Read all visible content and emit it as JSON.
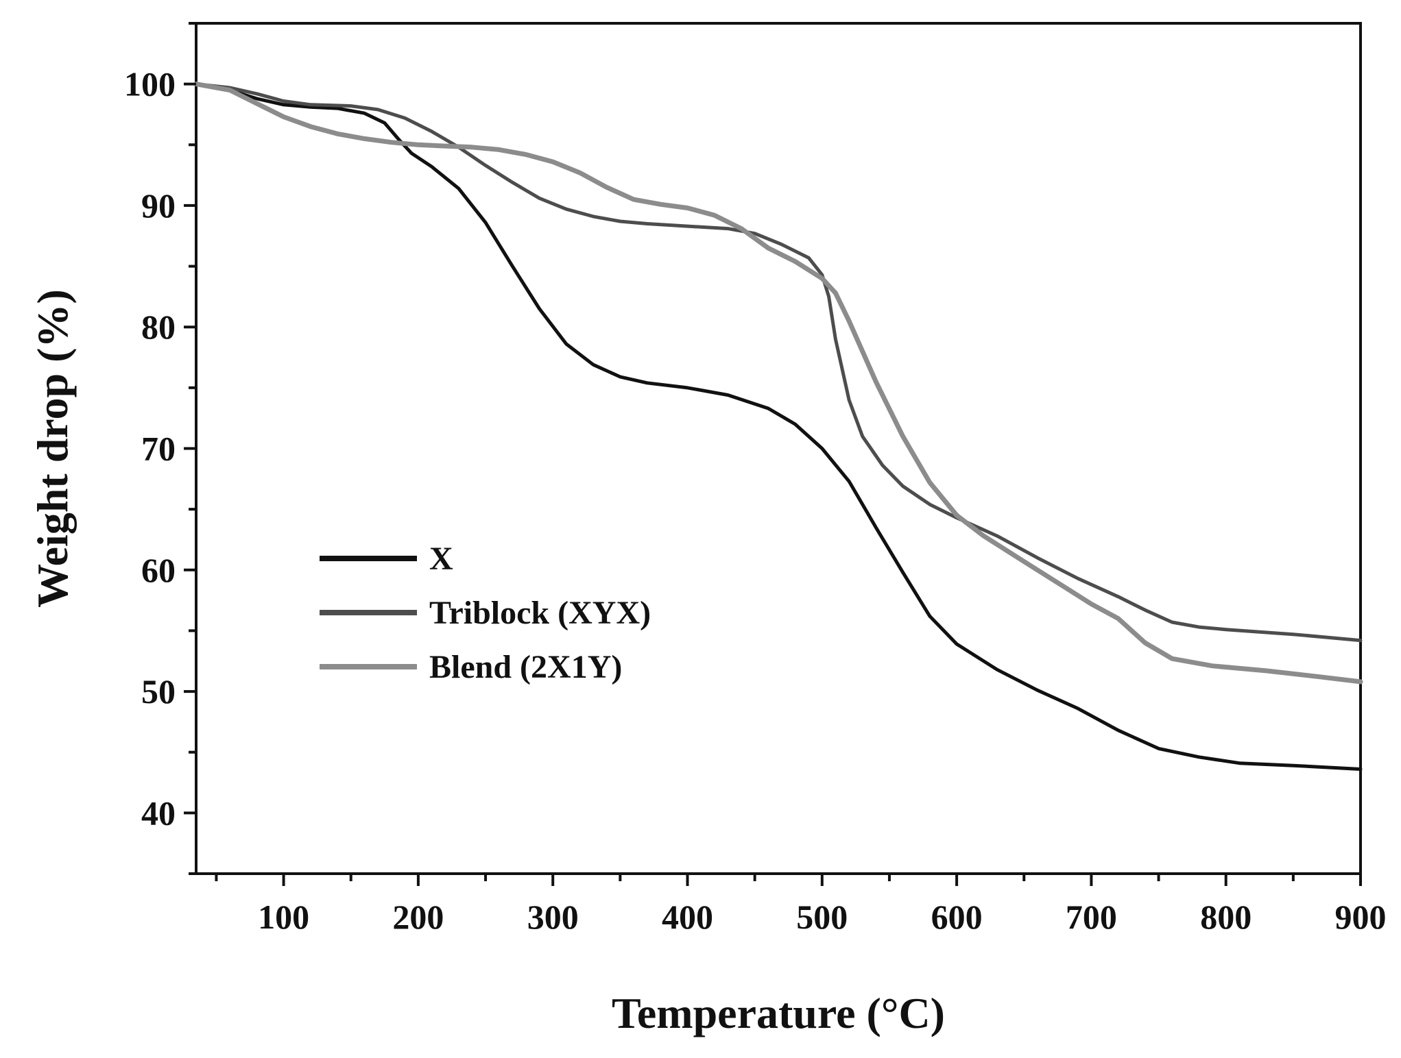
{
  "chart_data": {
    "type": "line",
    "xlabel": "Temperature (°C)",
    "ylabel": "Weight drop (%)",
    "xlim": [
      35,
      900
    ],
    "ylim": [
      35,
      105
    ],
    "xticks": [
      100,
      200,
      300,
      400,
      500,
      600,
      700,
      800,
      900
    ],
    "yticks": [
      40,
      50,
      60,
      70,
      80,
      90,
      100
    ],
    "grid": false,
    "legend_position": "middle-left",
    "series": [
      {
        "name": "X",
        "color": "#111111",
        "x": [
          35,
          60,
          80,
          100,
          120,
          140,
          160,
          175,
          185,
          195,
          210,
          230,
          250,
          270,
          290,
          310,
          330,
          350,
          370,
          400,
          430,
          460,
          480,
          500,
          520,
          540,
          560,
          580,
          600,
          630,
          660,
          690,
          720,
          750,
          780,
          810,
          850,
          900
        ],
        "y": [
          100,
          99.5,
          98.8,
          98.3,
          98.1,
          98.0,
          97.6,
          96.8,
          95.5,
          94.3,
          93.2,
          91.4,
          88.6,
          85.0,
          81.5,
          78.6,
          76.9,
          75.9,
          75.4,
          75.0,
          74.4,
          73.3,
          72.0,
          70.0,
          67.3,
          63.5,
          59.8,
          56.2,
          53.9,
          51.8,
          50.1,
          48.6,
          46.8,
          45.3,
          44.6,
          44.1,
          43.9,
          43.6
        ]
      },
      {
        "name": "Triblock (XYX)",
        "color": "#4d4d4d",
        "x": [
          35,
          60,
          80,
          100,
          120,
          150,
          170,
          190,
          210,
          230,
          250,
          270,
          290,
          310,
          330,
          350,
          370,
          400,
          430,
          450,
          470,
          490,
          500,
          505,
          510,
          520,
          530,
          545,
          560,
          580,
          600,
          630,
          660,
          690,
          720,
          740,
          760,
          780,
          800,
          850,
          900
        ],
        "y": [
          100,
          99.7,
          99.2,
          98.6,
          98.3,
          98.2,
          97.9,
          97.2,
          96.1,
          94.8,
          93.3,
          91.9,
          90.6,
          89.7,
          89.1,
          88.7,
          88.5,
          88.3,
          88.1,
          87.7,
          86.8,
          85.7,
          84.3,
          82.5,
          79.0,
          74.0,
          71.0,
          68.6,
          66.9,
          65.4,
          64.3,
          62.8,
          61.0,
          59.3,
          57.8,
          56.7,
          55.7,
          55.3,
          55.1,
          54.7,
          54.2
        ]
      },
      {
        "name": "Blend (2X1Y)",
        "color": "#8c8c8c",
        "x": [
          35,
          60,
          80,
          100,
          120,
          140,
          160,
          180,
          200,
          220,
          240,
          260,
          280,
          300,
          320,
          340,
          360,
          380,
          400,
          420,
          440,
          460,
          480,
          500,
          510,
          520,
          530,
          540,
          560,
          580,
          600,
          620,
          650,
          680,
          700,
          720,
          740,
          760,
          790,
          830,
          870,
          900
        ],
        "y": [
          100,
          99.5,
          98.4,
          97.3,
          96.5,
          95.9,
          95.5,
          95.2,
          95.0,
          94.9,
          94.8,
          94.6,
          94.2,
          93.6,
          92.7,
          91.5,
          90.5,
          90.1,
          89.8,
          89.2,
          88.1,
          86.5,
          85.4,
          84.0,
          82.8,
          80.5,
          78.0,
          75.5,
          71.0,
          67.2,
          64.5,
          62.8,
          60.7,
          58.6,
          57.2,
          56.0,
          54.0,
          52.7,
          52.1,
          51.7,
          51.2,
          50.8
        ]
      }
    ]
  }
}
